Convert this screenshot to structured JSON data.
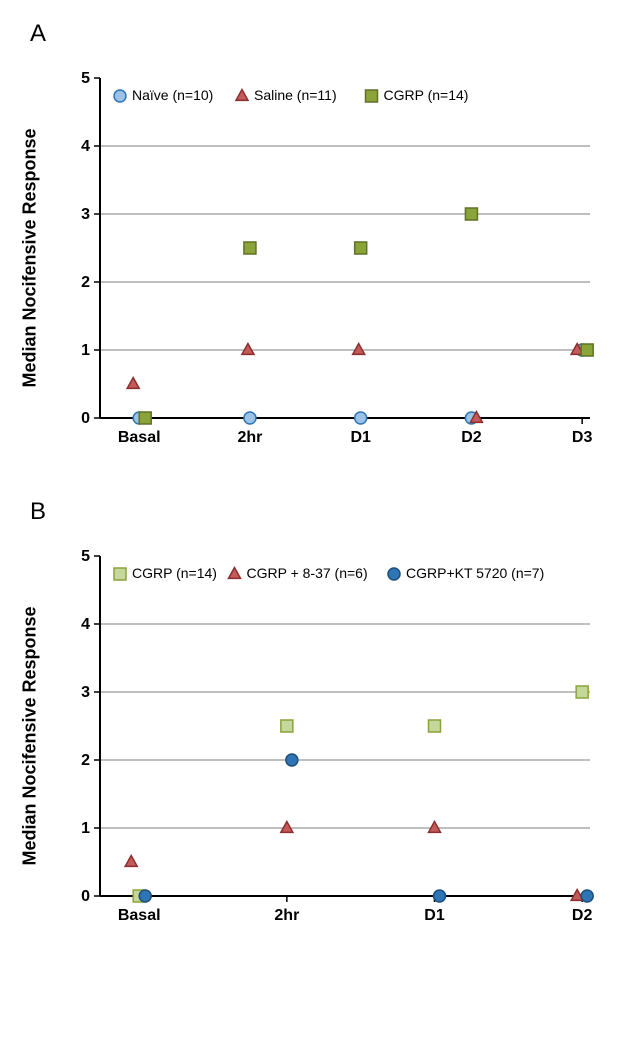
{
  "panelA": {
    "label": "A",
    "type": "scatter",
    "ylabel": "Median Nocifensive Response",
    "ylim": [
      0,
      5
    ],
    "ytick_step": 1,
    "categories": [
      "Basal",
      "2hr",
      "D1",
      "D2",
      "D3"
    ],
    "grid_color": "#7f7f7f",
    "axis_color": "#000000",
    "background_color": "#ffffff",
    "label_fontsize": 18,
    "tick_fontsize": 16,
    "legend_fontsize": 14,
    "marker_size": 12,
    "legend": [
      {
        "label": "Naïve (n=10)",
        "shape": "circle",
        "fill": "#9cc3e6",
        "stroke": "#2e75b6"
      },
      {
        "label": "Saline (n=11)",
        "shape": "triangle",
        "fill": "#c55a5a",
        "stroke": "#8b2e2e"
      },
      {
        "label": "CGRP (n=14)",
        "shape": "square",
        "fill": "#8aa43a",
        "stroke": "#5f7225"
      }
    ],
    "series": [
      {
        "shape": "circle",
        "fill": "#9cc3e6",
        "stroke": "#2e75b6",
        "points": [
          {
            "x": "Basal",
            "y": 0,
            "dx": 0
          },
          {
            "x": "2hr",
            "y": 0,
            "dx": 0
          },
          {
            "x": "D1",
            "y": 0,
            "dx": 0
          },
          {
            "x": "D2",
            "y": 0,
            "dx": 0
          },
          {
            "x": "D3",
            "y": 1,
            "dx": 0
          }
        ]
      },
      {
        "shape": "triangle",
        "fill": "#c55a5a",
        "stroke": "#8b2e2e",
        "points": [
          {
            "x": "Basal",
            "y": 0.5,
            "dx": -6
          },
          {
            "x": "2hr",
            "y": 1,
            "dx": -2
          },
          {
            "x": "D1",
            "y": 1,
            "dx": -2
          },
          {
            "x": "D2",
            "y": 0,
            "dx": 5
          },
          {
            "x": "D3",
            "y": 1,
            "dx": -5
          }
        ]
      },
      {
        "shape": "square",
        "fill": "#8aa43a",
        "stroke": "#5f7225",
        "points": [
          {
            "x": "Basal",
            "y": 0,
            "dx": 6
          },
          {
            "x": "2hr",
            "y": 2.5,
            "dx": 0
          },
          {
            "x": "D1",
            "y": 2.5,
            "dx": 0
          },
          {
            "x": "D2",
            "y": 3,
            "dx": 0
          },
          {
            "x": "D3",
            "y": 1,
            "dx": 5
          }
        ]
      }
    ]
  },
  "panelB": {
    "label": "B",
    "type": "scatter",
    "ylabel": "Median Nocifensive Response",
    "ylim": [
      0,
      5
    ],
    "ytick_step": 1,
    "categories": [
      "Basal",
      "2hr",
      "D1",
      "D2"
    ],
    "grid_color": "#7f7f7f",
    "axis_color": "#000000",
    "background_color": "#ffffff",
    "label_fontsize": 18,
    "tick_fontsize": 16,
    "legend_fontsize": 14,
    "marker_size": 12,
    "legend": [
      {
        "label": "CGRP (n=14)",
        "shape": "square",
        "fill": "#c5d79b",
        "stroke": "#8aa43a"
      },
      {
        "label": "CGRP + 8-37 (n=6)",
        "shape": "triangle",
        "fill": "#c55a5a",
        "stroke": "#8b2e2e"
      },
      {
        "label": "CGRP+KT 5720 (n=7)",
        "shape": "circle",
        "fill": "#2e75b6",
        "stroke": "#1f4e79"
      }
    ],
    "series": [
      {
        "shape": "square",
        "fill": "#c5d79b",
        "stroke": "#8aa43a",
        "points": [
          {
            "x": "Basal",
            "y": 0,
            "dx": 0
          },
          {
            "x": "2hr",
            "y": 2.5,
            "dx": 0
          },
          {
            "x": "D1",
            "y": 2.5,
            "dx": 0
          },
          {
            "x": "D2",
            "y": 3,
            "dx": 0
          }
        ]
      },
      {
        "shape": "triangle",
        "fill": "#c55a5a",
        "stroke": "#8b2e2e",
        "points": [
          {
            "x": "Basal",
            "y": 0.5,
            "dx": -8
          },
          {
            "x": "2hr",
            "y": 1,
            "dx": 0
          },
          {
            "x": "D1",
            "y": 1,
            "dx": 0
          },
          {
            "x": "D2",
            "y": 0,
            "dx": -5
          }
        ]
      },
      {
        "shape": "circle",
        "fill": "#2e75b6",
        "stroke": "#1f4e79",
        "points": [
          {
            "x": "Basal",
            "y": 0,
            "dx": 6
          },
          {
            "x": "2hr",
            "y": 2,
            "dx": 5
          },
          {
            "x": "D1",
            "y": 0,
            "dx": 5
          },
          {
            "x": "D2",
            "y": 0,
            "dx": 5
          }
        ]
      }
    ]
  }
}
